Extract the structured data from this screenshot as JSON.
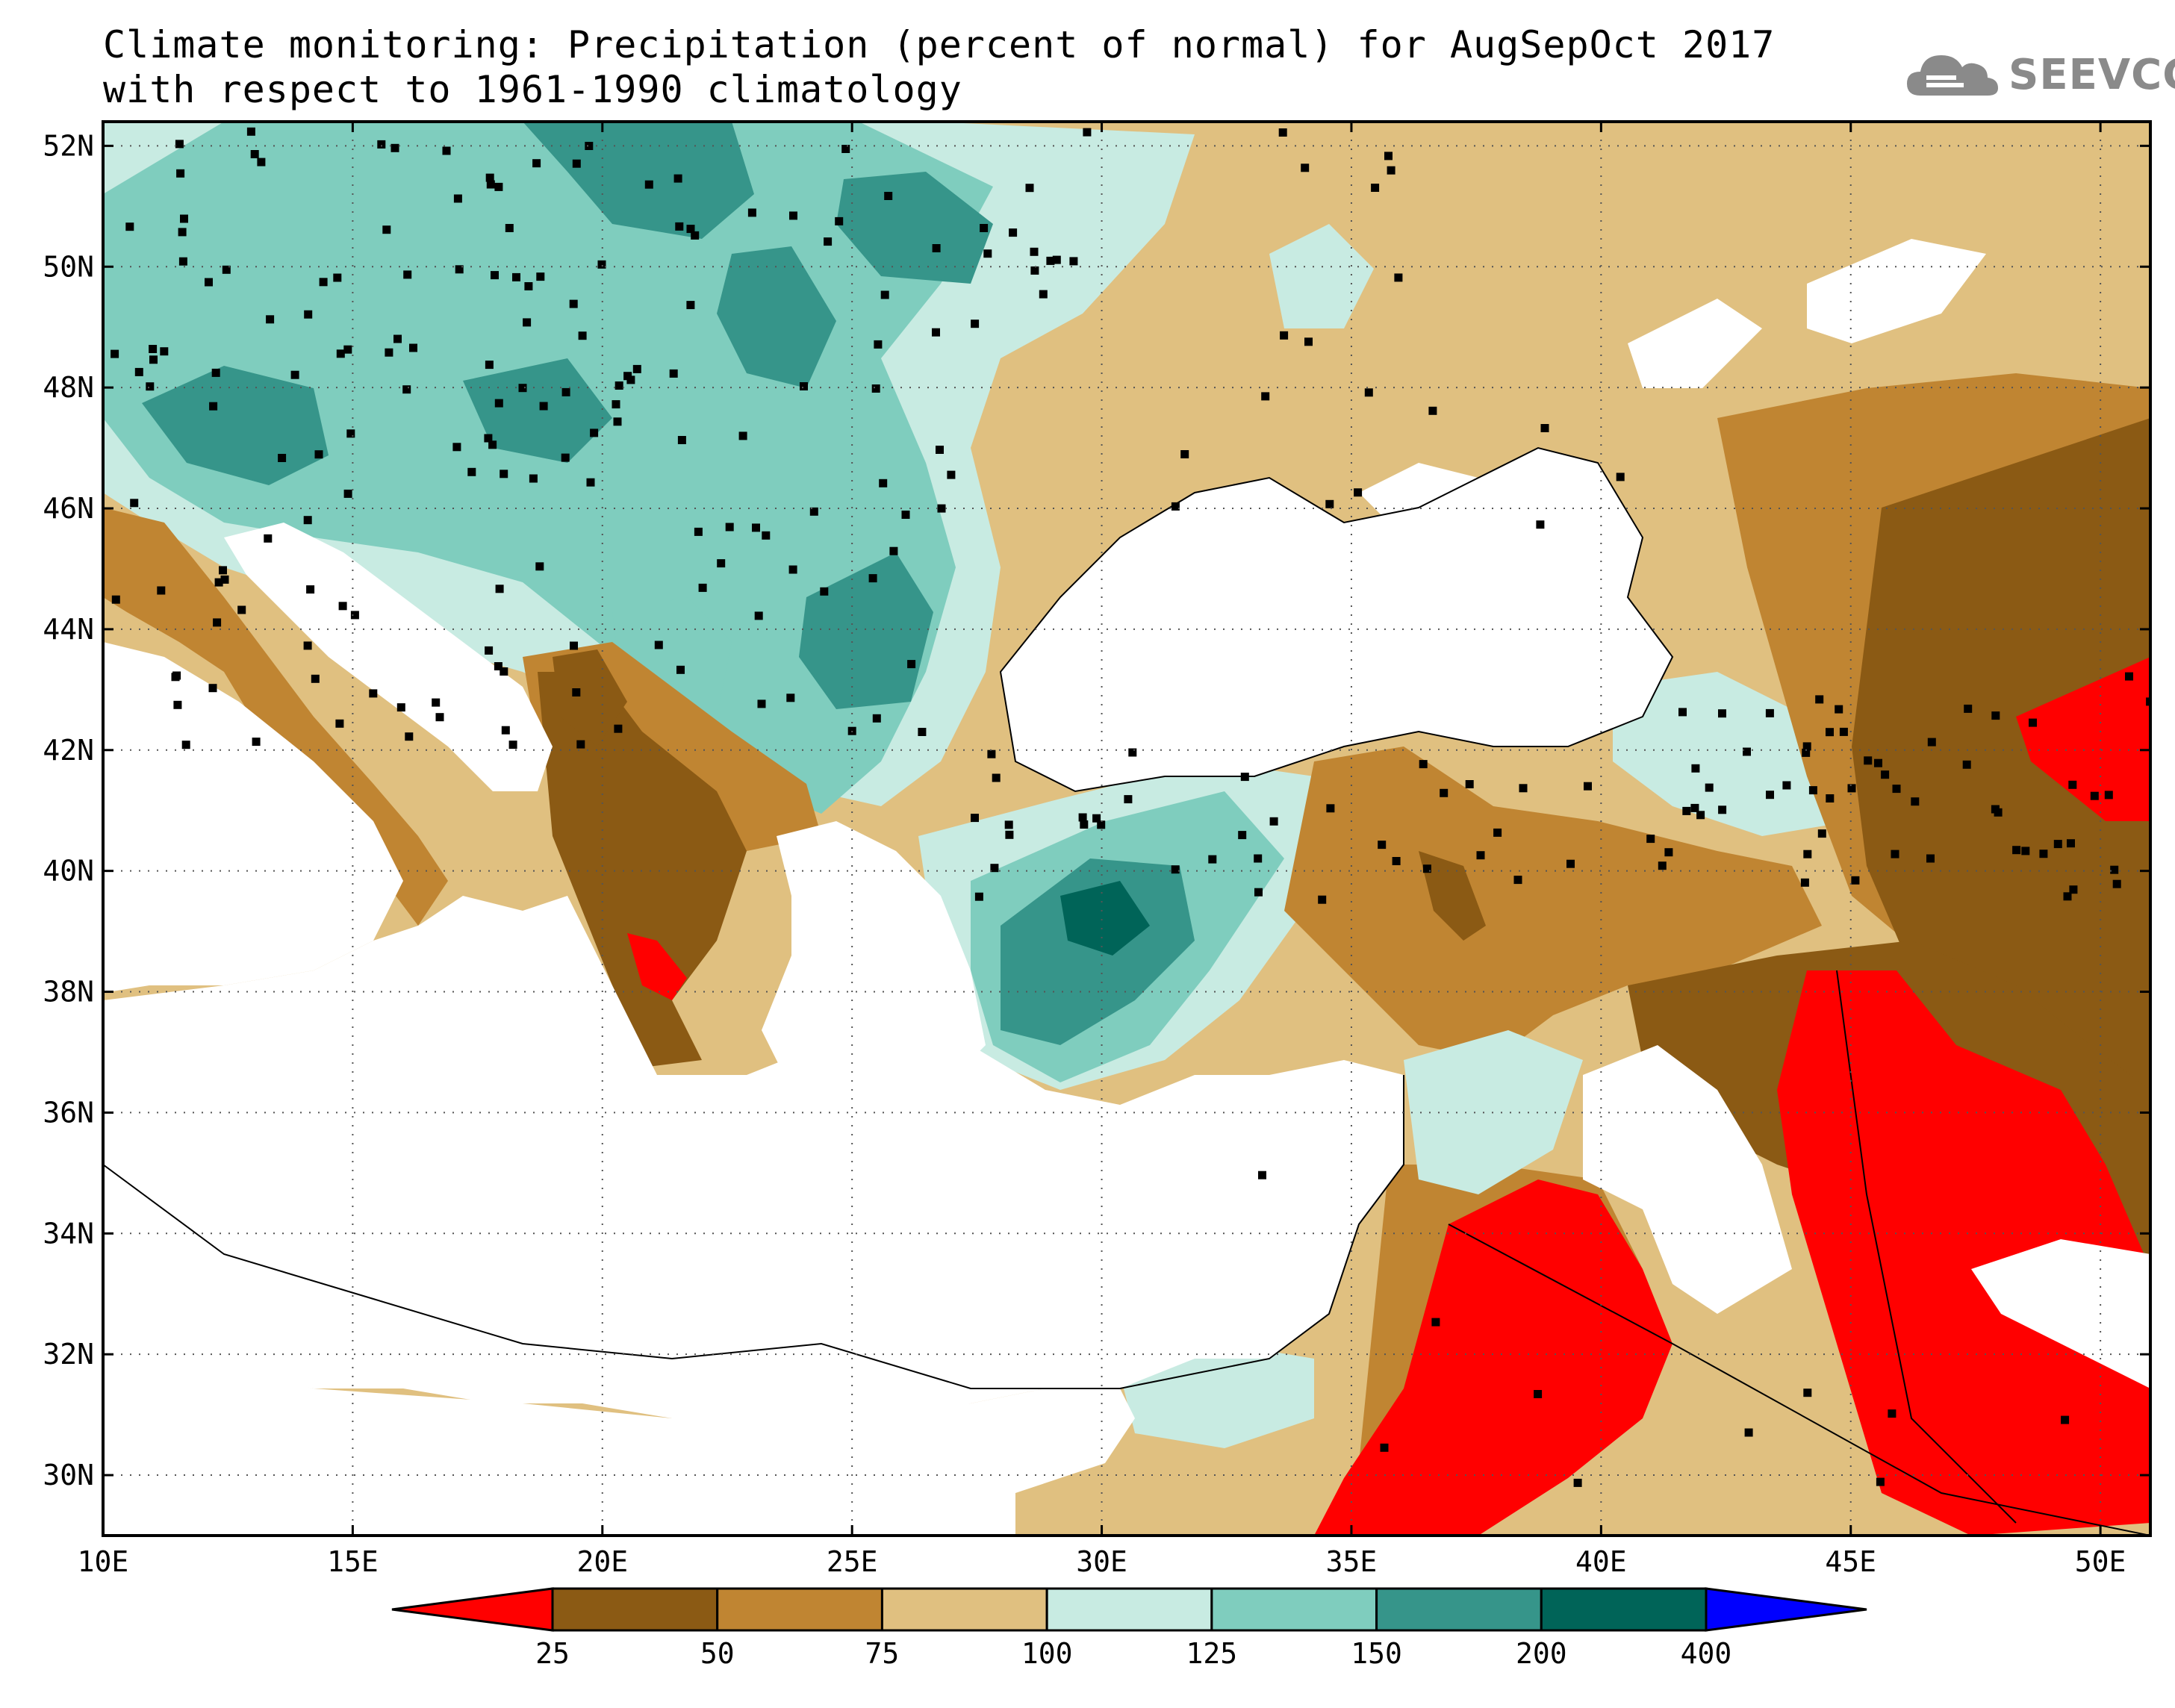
{
  "title": {
    "line1": "Climate monitoring: Precipitation (percent of normal) for AugSepOct 2017",
    "line2": "with respect to 1961-1990 climatology"
  },
  "logo": {
    "text": "SEEVCCC",
    "icon": "cloud-icon"
  },
  "map": {
    "lat_ticks": [
      "52N",
      "50N",
      "48N",
      "46N",
      "44N",
      "42N",
      "40N",
      "38N",
      "36N",
      "34N",
      "32N",
      "30N"
    ],
    "lon_ticks": [
      "10E",
      "15E",
      "20E",
      "25E",
      "30E",
      "35E",
      "40E",
      "45E",
      "50E"
    ],
    "lat_range": [
      29,
      52.4
    ],
    "lon_range": [
      10,
      51
    ],
    "gridlines": "dotted"
  },
  "legend": {
    "labels": [
      "25",
      "50",
      "75",
      "100",
      "125",
      "150",
      "200",
      "400"
    ],
    "classes": [
      {
        "range": "<25",
        "color": "#ff0000"
      },
      {
        "range": "25-50",
        "color": "#8b5a14"
      },
      {
        "range": "50-75",
        "color": "#c08532"
      },
      {
        "range": "75-100",
        "color": "#e0c080"
      },
      {
        "range": "100-125",
        "color": "#c8ebe2"
      },
      {
        "range": "125-150",
        "color": "#7fcdbe"
      },
      {
        "range": "150-200",
        "color": "#36958a"
      },
      {
        "range": "200-400",
        "color": "#006458"
      },
      {
        "range": ">400",
        "color": "#0000ff"
      }
    ]
  },
  "colors": {
    "red": "#ff0000",
    "dark_brown": "#8b5a14",
    "brown": "#c08532",
    "tan": "#e0c080",
    "light_teal": "#c8ebe2",
    "teal": "#7fcdbe",
    "dark_teal": "#36958a",
    "deep_teal": "#006458",
    "blue": "#0000ff"
  }
}
